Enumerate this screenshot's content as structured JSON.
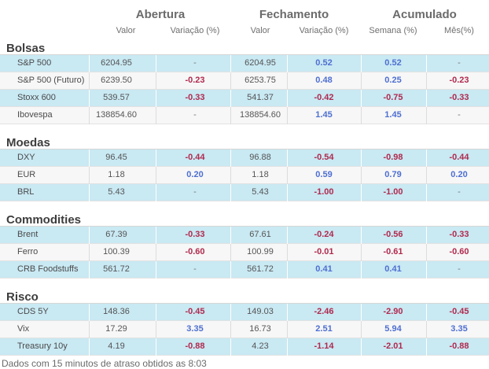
{
  "headers": {
    "abertura": "Abertura",
    "fechamento": "Fechamento",
    "acumulado": "Acumulado",
    "valor1": "Valor",
    "var1": "Variação (%)",
    "valor2": "Valor",
    "var2": "Variação (%)",
    "semana": "Semana (%)",
    "mes": "Mês(%)"
  },
  "sections": [
    {
      "title": "Bolsas",
      "rows": [
        {
          "name": "S&P 500",
          "open": "6204.95",
          "open_var": "-",
          "close": "6204.95",
          "close_var": "0.52",
          "week": "0.52",
          "month": "-"
        },
        {
          "name": "S&P 500 (Futuro)",
          "open": "6239.50",
          "open_var": "-0.23",
          "close": "6253.75",
          "close_var": "0.48",
          "week": "0.25",
          "month": "-0.23"
        },
        {
          "name": "Stoxx 600",
          "open": "539.57",
          "open_var": "-0.33",
          "close": "541.37",
          "close_var": "-0.42",
          "week": "-0.75",
          "month": "-0.33"
        },
        {
          "name": "Ibovespa",
          "open": "138854.60",
          "open_var": "-",
          "close": "138854.60",
          "close_var": "1.45",
          "week": "1.45",
          "month": "-"
        }
      ]
    },
    {
      "title": "Moedas",
      "rows": [
        {
          "name": "DXY",
          "open": "96.45",
          "open_var": "-0.44",
          "close": "96.88",
          "close_var": "-0.54",
          "week": "-0.98",
          "month": "-0.44"
        },
        {
          "name": "EUR",
          "open": "1.18",
          "open_var": "0.20",
          "close": "1.18",
          "close_var": "0.59",
          "week": "0.79",
          "month": "0.20"
        },
        {
          "name": "BRL",
          "open": "5.43",
          "open_var": "-",
          "close": "5.43",
          "close_var": "-1.00",
          "week": "-1.00",
          "month": "-"
        }
      ]
    },
    {
      "title": "Commodities",
      "rows": [
        {
          "name": "Brent",
          "open": "67.39",
          "open_var": "-0.33",
          "close": "67.61",
          "close_var": "-0.24",
          "week": "-0.56",
          "month": "-0.33"
        },
        {
          "name": "Ferro",
          "open": "100.39",
          "open_var": "-0.60",
          "close": "100.99",
          "close_var": "-0.01",
          "week": "-0.61",
          "month": "-0.60"
        },
        {
          "name": "CRB Foodstuffs",
          "open": "561.72",
          "open_var": "-",
          "close": "561.72",
          "close_var": "0.41",
          "week": "0.41",
          "month": "-"
        }
      ]
    },
    {
      "title": "Risco",
      "rows": [
        {
          "name": "CDS 5Y",
          "open": "148.36",
          "open_var": "-0.45",
          "close": "149.03",
          "close_var": "-2.46",
          "week": "-2.90",
          "month": "-0.45"
        },
        {
          "name": "Vix",
          "open": "17.29",
          "open_var": "3.35",
          "close": "16.73",
          "close_var": "2.51",
          "week": "5.94",
          "month": "3.35"
        },
        {
          "name": "Treasury 10y",
          "open": "4.19",
          "open_var": "-0.88",
          "close": "4.23",
          "close_var": "-1.14",
          "week": "-2.01",
          "month": "-0.88"
        }
      ]
    }
  ],
  "footer": "Dados com 15 minutos de atraso obtidos as 8:03",
  "colors": {
    "positive": "#4e6fd1",
    "negative": "#b02a4e",
    "row_highlight": "#c9e9f3",
    "row_plain": "#f7f7f7"
  }
}
